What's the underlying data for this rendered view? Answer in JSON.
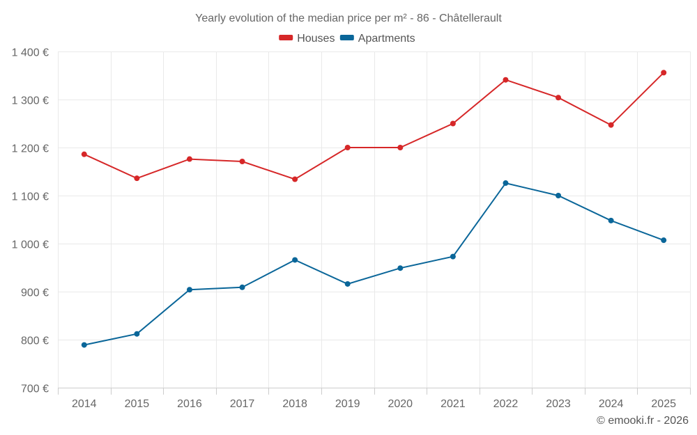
{
  "chart_data": {
    "type": "line",
    "title": "Yearly evolution of the median price per m² - 86 - Châtellerault",
    "xlabel": "",
    "ylabel": "",
    "categories": [
      "2014",
      "2015",
      "2016",
      "2017",
      "2018",
      "2019",
      "2020",
      "2021",
      "2022",
      "2023",
      "2024",
      "2025"
    ],
    "ylim": [
      700,
      1400
    ],
    "yticks": [
      700,
      800,
      900,
      1000,
      1100,
      1200,
      1300,
      1400
    ],
    "ytick_labels": [
      "700 €",
      "800 €",
      "900 €",
      "1 000 €",
      "1 100 €",
      "1 200 €",
      "1 300 €",
      "1 400 €"
    ],
    "grid": true,
    "legend_position": "top-center",
    "series": [
      {
        "name": "Houses",
        "color": "#d62728",
        "values": [
          1186,
          1136,
          1176,
          1171,
          1134,
          1200,
          1200,
          1250,
          1341,
          1304,
          1247,
          1356
        ]
      },
      {
        "name": "Apartments",
        "color": "#0a6699",
        "values": [
          789,
          812,
          904,
          909,
          966,
          916,
          949,
          973,
          1126,
          1100,
          1048,
          1007
        ]
      }
    ]
  },
  "credit": "© emooki.fr - 2026"
}
